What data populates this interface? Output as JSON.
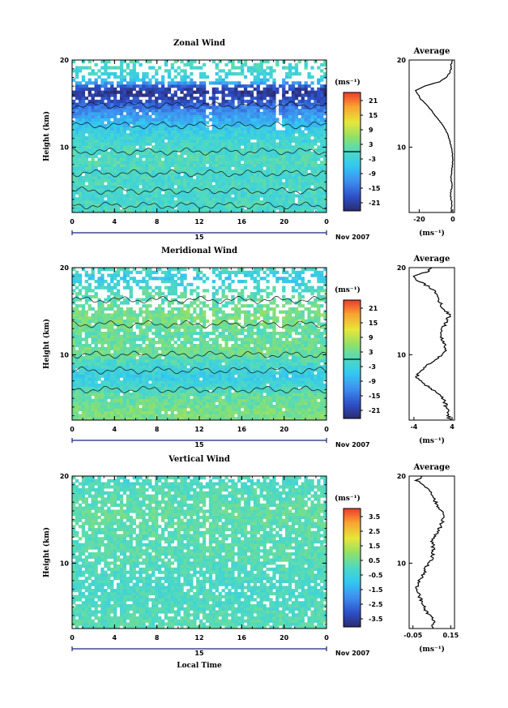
{
  "figure": {
    "x_axis_label": "Local Time",
    "date_label": "Nov 2007",
    "day_label": "15",
    "unit_label": "(ms⁻¹)",
    "avg_unit_label": "(ms⁻¹)",
    "y_axis_label": "Height (km)"
  },
  "chart_data": [
    {
      "type": "heatmap",
      "title": "Zonal Wind",
      "xlabel": "Local Time",
      "ylabel": "Height (km)",
      "x_ticks": [
        "0",
        "4",
        "8",
        "12",
        "16",
        "20",
        "0"
      ],
      "y_ticks": [
        "20",
        "10"
      ],
      "xlim": [
        0,
        24
      ],
      "ylim": [
        2.5,
        20
      ],
      "colorbar": {
        "label": "(ms⁻¹)",
        "ticks": [
          "21",
          "15",
          "9",
          "3",
          "-3",
          "-9",
          "-15",
          "-21"
        ],
        "range": [
          -24,
          24
        ]
      },
      "profile": [
        {
          "h": 2.5,
          "v": -1
        },
        {
          "h": 3.5,
          "v": -0.5
        },
        {
          "h": 4.5,
          "v": -1.5
        },
        {
          "h": 5.5,
          "v": -0.5
        },
        {
          "h": 6.5,
          "v": -1
        },
        {
          "h": 7.5,
          "v": -0.5
        },
        {
          "h": 8.5,
          "v": 0
        },
        {
          "h": 9.5,
          "v": -0.5
        },
        {
          "h": 10.5,
          "v": -1.5
        },
        {
          "h": 11.5,
          "v": -3
        },
        {
          "h": 12.5,
          "v": -6
        },
        {
          "h": 13.5,
          "v": -10
        },
        {
          "h": 14.5,
          "v": -14
        },
        {
          "h": 15.5,
          "v": -19
        },
        {
          "h": 16.5,
          "v": -22
        },
        {
          "h": 17,
          "v": -17
        },
        {
          "h": 17.5,
          "v": -8
        },
        {
          "h": 18,
          "v": -4
        },
        {
          "h": 18.5,
          "v": -2
        },
        {
          "h": 19,
          "v": -1
        },
        {
          "h": 19.5,
          "v": -1
        },
        {
          "h": 20,
          "v": 0
        }
      ],
      "avg_title": "Average",
      "avg_x_ticks": [
        "-20",
        "0"
      ],
      "avg_xlim": [
        -26,
        1
      ],
      "avg_ylim": [
        2.5,
        20
      ],
      "colors": {
        "high": "#ef3b2c",
        "low": "#303060"
      }
    },
    {
      "type": "heatmap",
      "title": "Meridional Wind",
      "xlabel": "Local Time",
      "ylabel": "Height (km)",
      "x_ticks": [
        "0",
        "4",
        "8",
        "12",
        "16",
        "20",
        "0"
      ],
      "y_ticks": [
        "20",
        "10"
      ],
      "xlim": [
        0,
        24
      ],
      "ylim": [
        2.5,
        20
      ],
      "colorbar": {
        "label": "(ms⁻¹)",
        "ticks": [
          "21",
          "15",
          "9",
          "3",
          "-3",
          "-9",
          "-15",
          "-21"
        ],
        "range": [
          -24,
          24
        ]
      },
      "profile": [
        {
          "h": 2.5,
          "v": 3.5
        },
        {
          "h": 3.5,
          "v": 3
        },
        {
          "h": 4.5,
          "v": 2.5
        },
        {
          "h": 5.5,
          "v": 1.5
        },
        {
          "h": 6.5,
          "v": -1.5
        },
        {
          "h": 7.5,
          "v": -3.5
        },
        {
          "h": 8.5,
          "v": -2
        },
        {
          "h": 9.5,
          "v": 0.5
        },
        {
          "h": 10.5,
          "v": 3
        },
        {
          "h": 11.5,
          "v": 2
        },
        {
          "h": 12.5,
          "v": 1.5
        },
        {
          "h": 13.5,
          "v": 2.5
        },
        {
          "h": 14.5,
          "v": 3.5
        },
        {
          "h": 15.5,
          "v": 2
        },
        {
          "h": 16.5,
          "v": 1
        },
        {
          "h": 17.5,
          "v": 0
        },
        {
          "h": 18.5,
          "v": -3
        },
        {
          "h": 19,
          "v": -4
        },
        {
          "h": 19.5,
          "v": -1.5
        },
        {
          "h": 20,
          "v": 0
        }
      ],
      "avg_title": "Average",
      "avg_x_ticks": [
        "-4",
        "4"
      ],
      "avg_xlim": [
        -5,
        4.5
      ],
      "avg_ylim": [
        2.5,
        20
      ]
    },
    {
      "type": "heatmap",
      "title": "Vertical Wind",
      "xlabel": "Local Time",
      "ylabel": "Height (km)",
      "x_ticks": [
        "0",
        "4",
        "8",
        "12",
        "16",
        "20",
        "0"
      ],
      "y_ticks": [
        "20",
        "10"
      ],
      "xlim": [
        0,
        24
      ],
      "ylim": [
        2.5,
        20
      ],
      "colorbar": {
        "label": "(ms⁻¹)",
        "ticks": [
          "3.5",
          "2.5",
          "1.5",
          "0.5",
          "-0.5",
          "-1.5",
          "-2.5",
          "-3.5"
        ],
        "range": [
          -4,
          4
        ]
      },
      "profile": [
        {
          "h": 2.5,
          "v": 0.05
        },
        {
          "h": 3.5,
          "v": 0.06
        },
        {
          "h": 4.5,
          "v": 0.02
        },
        {
          "h": 5.5,
          "v": 0.0
        },
        {
          "h": 6.5,
          "v": -0.02
        },
        {
          "h": 7.5,
          "v": -0.03
        },
        {
          "h": 8.5,
          "v": 0.0
        },
        {
          "h": 9.5,
          "v": 0.02
        },
        {
          "h": 10.5,
          "v": 0.05
        },
        {
          "h": 11.5,
          "v": 0.06
        },
        {
          "h": 12.5,
          "v": 0.05
        },
        {
          "h": 13.5,
          "v": 0.08
        },
        {
          "h": 14.5,
          "v": 0.1
        },
        {
          "h": 15.5,
          "v": 0.12
        },
        {
          "h": 16.5,
          "v": 0.08
        },
        {
          "h": 17.5,
          "v": 0.06
        },
        {
          "h": 18.5,
          "v": 0.03
        },
        {
          "h": 19.5,
          "v": -0.03
        },
        {
          "h": 20,
          "v": 0.0
        }
      ],
      "avg_title": "Average",
      "avg_x_ticks": [
        "-0.05",
        "0.15"
      ],
      "avg_xlim": [
        -0.07,
        0.17
      ],
      "avg_ylim": [
        2.5,
        20
      ]
    }
  ]
}
